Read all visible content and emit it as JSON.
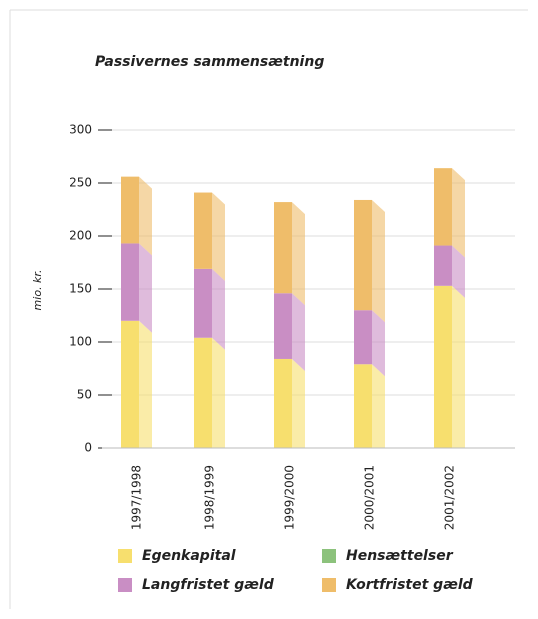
{
  "chart_data": {
    "type": "stacked_bar",
    "title": "Passivernes sammensætning",
    "y_label": "mio. kr.",
    "categories": [
      "1997/1998",
      "1998/1999",
      "1999/2000",
      "2000/2001",
      "2001/2002"
    ],
    "series": [
      {
        "name": "Egenkapital",
        "color": "#f7df6e",
        "values": [
          120,
          104,
          84,
          79,
          153
        ]
      },
      {
        "name": "Langfristet gæld",
        "color": "#c98ec4",
        "values": [
          73,
          65,
          62,
          51,
          38
        ]
      },
      {
        "name": "Hensættelser",
        "color": "#8cc27c",
        "values": [
          0,
          0,
          0,
          0,
          0
        ]
      },
      {
        "name": "Kortfristet gæld",
        "color": "#efbd6a",
        "values": [
          63,
          72,
          86,
          104,
          73
        ]
      }
    ],
    "ylim": [
      0,
      300
    ],
    "yticks": [
      0,
      50,
      100,
      150,
      200,
      250,
      300
    ],
    "grid": true
  }
}
